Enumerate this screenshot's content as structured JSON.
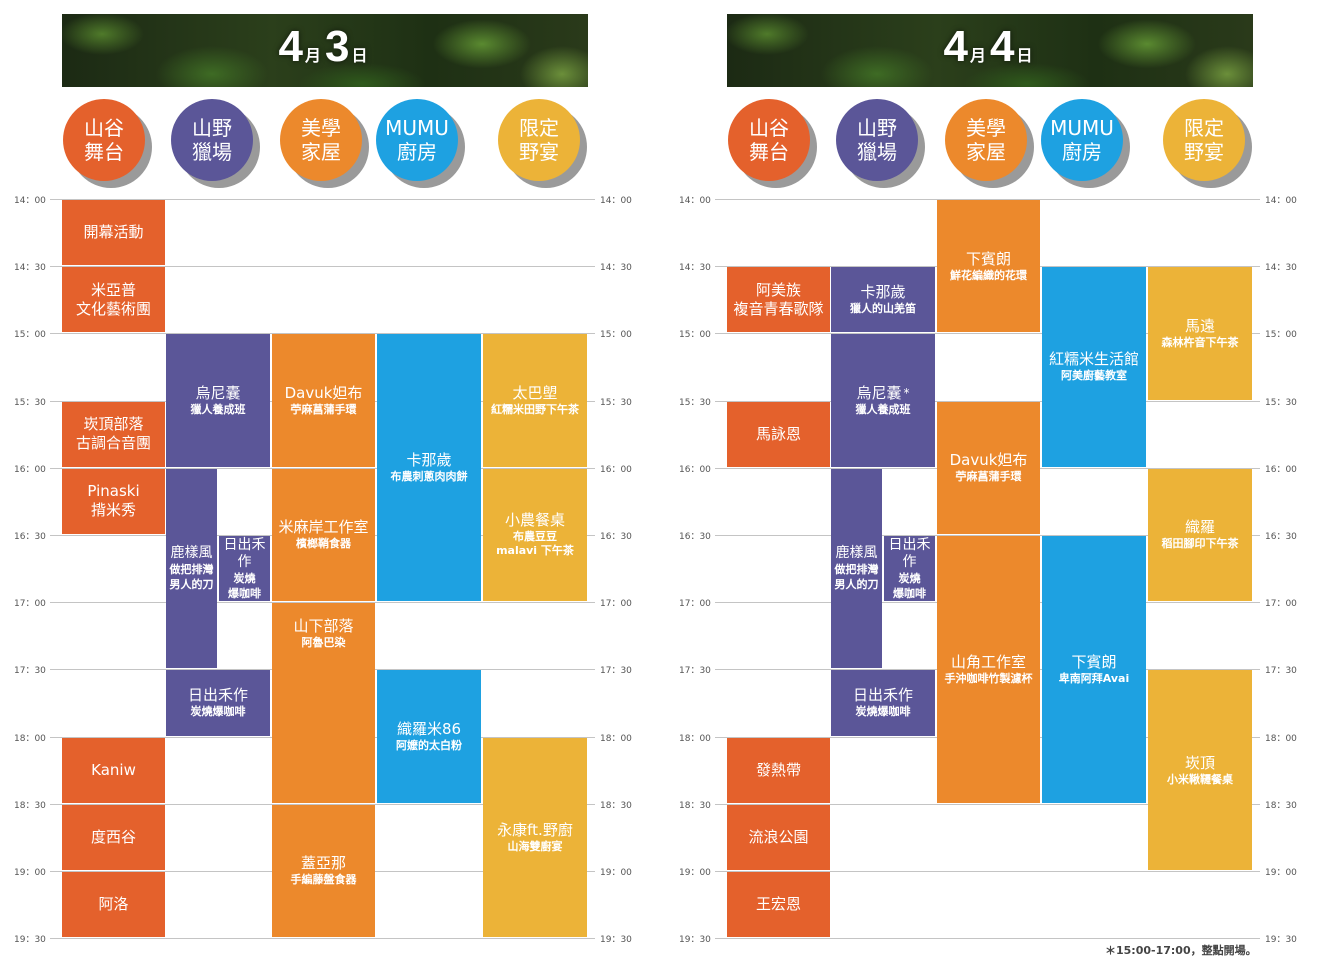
{
  "colors": [
    "#e4612c",
    "#5b5698",
    "#ec892c",
    "#1ea1e1",
    "#ecb338"
  ],
  "times": [
    "14：00",
    "14：30",
    "15：00",
    "15：30",
    "16：00",
    "16：30",
    "17：00",
    "17：30",
    "18：00",
    "18：30",
    "19：00",
    "19：30"
  ],
  "days": [
    {
      "date": {
        "month": "4",
        "month_unit": "月",
        "day": "3",
        "day_unit": "日"
      },
      "venues": [
        "山谷\n舞台",
        "山野\n獵場",
        "美學\n家屋",
        "MUMU\n廚房",
        "限定\n野宴"
      ],
      "events": [
        {
          "col": 0,
          "start": "14:00",
          "end": "14:30",
          "title": "開幕活動",
          "sub": ""
        },
        {
          "col": 0,
          "start": "14:30",
          "end": "15:00",
          "title": "米亞普\n文化藝術團",
          "sub": ""
        },
        {
          "col": 0,
          "start": "15:30",
          "end": "16:00",
          "title": "崁頂部落\n古調合音團",
          "sub": ""
        },
        {
          "col": 0,
          "start": "16:00",
          "end": "16:30",
          "title": "Pinaski\n揹米秀",
          "sub": ""
        },
        {
          "col": 0,
          "start": "18:00",
          "end": "18:30",
          "title": "Kaniw",
          "sub": ""
        },
        {
          "col": 0,
          "start": "18:30",
          "end": "19:00",
          "title": "度西谷",
          "sub": ""
        },
        {
          "col": 0,
          "start": "19:00",
          "end": "19:30",
          "title": "阿洛",
          "sub": ""
        },
        {
          "col": 1,
          "start": "15:00",
          "end": "16:00",
          "title": "烏尼囊",
          "sub": "獵人養成班"
        },
        {
          "col": 1,
          "lane": "left",
          "start": "16:00",
          "end": "17:30",
          "title": "鹿樣風",
          "sub": "做把排灣\n男人的刀"
        },
        {
          "col": 1,
          "lane": "right",
          "start": "16:30",
          "end": "17:00",
          "title": "日出禾作",
          "sub": "炭燒\n爆咖啡"
        },
        {
          "col": 1,
          "start": "17:30",
          "end": "18:00",
          "title": "日出禾作",
          "sub": "炭燒爆咖啡"
        },
        {
          "col": 2,
          "start": "15:00",
          "end": "16:00",
          "title": "Davuk妲布",
          "sub": "苧麻菖蒲手環"
        },
        {
          "col": 2,
          "start": "16:00",
          "end": "17:00",
          "title": "米麻岸工作室",
          "sub": "檳榔鞘食器"
        },
        {
          "col": 2,
          "start": "17:00",
          "end": "18:30",
          "title": "山下部落",
          "sub": "阿魯巴染",
          "align": "top"
        },
        {
          "col": 2,
          "start": "18:30",
          "end": "19:30",
          "title": "蓋亞那",
          "sub": "手編藤盤食器"
        },
        {
          "col": 3,
          "start": "15:00",
          "end": "17:00",
          "title": "卡那歲",
          "sub": "布農刺蔥肉肉餅"
        },
        {
          "col": 3,
          "start": "17:30",
          "end": "18:30",
          "title": "織羅米86",
          "sub": "阿嬤的太白粉"
        },
        {
          "col": 4,
          "start": "15:00",
          "end": "16:00",
          "title": "太巴塱",
          "sub": "紅糯米田野下午茶"
        },
        {
          "col": 4,
          "start": "16:00",
          "end": "17:00",
          "title": "小農餐桌",
          "sub": "布農豆豆\nmalavi 下午茶"
        },
        {
          "col": 4,
          "start": "18:00",
          "end": "19:30",
          "title": "永康ft.野廚",
          "sub": "山海雙廚宴"
        }
      ]
    },
    {
      "date": {
        "month": "4",
        "month_unit": "月",
        "day": "4",
        "day_unit": "日"
      },
      "venues": [
        "山谷\n舞台",
        "山野\n獵場",
        "美學\n家屋",
        "MUMU\n廚房",
        "限定\n野宴"
      ],
      "events": [
        {
          "col": 0,
          "start": "14:30",
          "end": "15:00",
          "title": "阿美族\n複音青春歌隊",
          "sub": ""
        },
        {
          "col": 0,
          "start": "15:30",
          "end": "16:00",
          "title": "馬詠恩",
          "sub": ""
        },
        {
          "col": 0,
          "start": "18:00",
          "end": "18:30",
          "title": "發熱帶",
          "sub": ""
        },
        {
          "col": 0,
          "start": "18:30",
          "end": "19:00",
          "title": "流浪公園",
          "sub": ""
        },
        {
          "col": 0,
          "start": "19:00",
          "end": "19:30",
          "title": "王宏恩",
          "sub": ""
        },
        {
          "col": 1,
          "start": "14:30",
          "end": "15:00",
          "title": "卡那歲",
          "sub": "獵人的山羌笛"
        },
        {
          "col": 1,
          "start": "15:00",
          "end": "16:00",
          "title": "烏尼囊",
          "star": "*",
          "sub": "獵人養成班"
        },
        {
          "col": 1,
          "lane": "left",
          "start": "16:00",
          "end": "17:30",
          "title": "鹿樣風",
          "sub": "做把排灣\n男人的刀"
        },
        {
          "col": 1,
          "lane": "right",
          "start": "16:30",
          "end": "17:00",
          "title": "日出禾作",
          "sub": "炭燒\n爆咖啡"
        },
        {
          "col": 1,
          "start": "17:30",
          "end": "18:00",
          "title": "日出禾作",
          "sub": "炭燒爆咖啡"
        },
        {
          "col": 2,
          "start": "14:00",
          "end": "15:00",
          "title": "下賓朗",
          "sub": "鮮花編織的花環"
        },
        {
          "col": 2,
          "start": "15:30",
          "end": "16:30",
          "title": "Davuk妲布",
          "sub": "苧麻菖蒲手環"
        },
        {
          "col": 2,
          "start": "16:30",
          "end": "18:30",
          "title": "山角工作室",
          "sub": "手沖咖啡竹製濾杯"
        },
        {
          "col": 3,
          "start": "14:30",
          "end": "16:00",
          "title": "紅糯米生活館",
          "sub": "阿美廚藝教室"
        },
        {
          "col": 3,
          "start": "16:30",
          "end": "18:30",
          "title": "下賓朗",
          "sub": "卑南阿拜Avai"
        },
        {
          "col": 4,
          "start": "14:30",
          "end": "15:30",
          "title": "馬遠",
          "sub": "森林杵音下午茶"
        },
        {
          "col": 4,
          "start": "16:00",
          "end": "17:00",
          "title": "織羅",
          "sub": "稻田腳印下午茶"
        },
        {
          "col": 4,
          "start": "17:30",
          "end": "19:00",
          "title": "崁頂",
          "sub": "小米鞦韆餐桌"
        }
      ],
      "note": "＊15:00-17:00，整點開場。"
    }
  ]
}
